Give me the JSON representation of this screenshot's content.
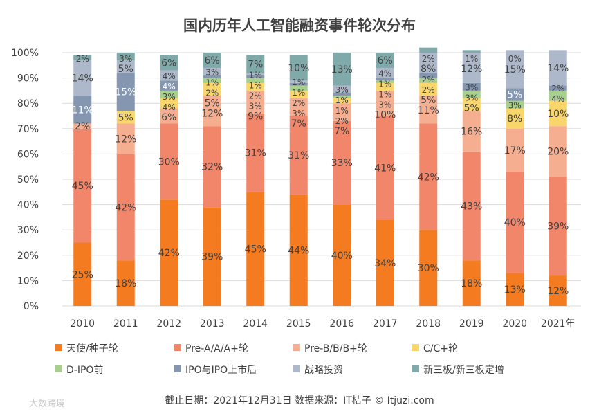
{
  "chart_data": {
    "type": "bar",
    "stacked": true,
    "title": "国内历年人工智能融资事件轮次分布",
    "categories": [
      "2010",
      "2011",
      "2012",
      "2013",
      "2014",
      "2015",
      "2016",
      "2017",
      "2018",
      "2019",
      "2020",
      "2021年"
    ],
    "ylim": [
      0,
      100
    ],
    "yticks": [
      "0%",
      "10%",
      "20%",
      "30%",
      "40%",
      "50%",
      "60%",
      "70%",
      "80%",
      "90%",
      "100%"
    ],
    "grid": true,
    "legend_position": "bottom",
    "series": [
      {
        "name": "天使/种子轮",
        "color": "#F47B20",
        "label_color": "#404040",
        "values": [
          25,
          18,
          42,
          39,
          45,
          44,
          40,
          34,
          30,
          18,
          13,
          12
        ]
      },
      {
        "name": "Pre-A/A/A+轮",
        "color": "#F2866A",
        "label_color": "#404040",
        "values": [
          45,
          42,
          30,
          32,
          31,
          31,
          33,
          41,
          42,
          43,
          40,
          39
        ]
      },
      {
        "name": "Pre-B/B/B+轮",
        "color": "#F6AE91",
        "label_color": "#404040",
        "values": [
          2,
          12,
          6,
          12,
          9,
          7,
          7,
          10,
          11,
          16,
          17,
          20
        ]
      },
      {
        "name": "C/C+轮",
        "color": "#F8D66B",
        "label_color": "#404040",
        "values": [
          0,
          5,
          4,
          5,
          3,
          3,
          2,
          3,
          5,
          5,
          8,
          10
        ]
      },
      {
        "name": "D-IPO前",
        "color": "#A8D08D",
        "label_color": "#404040",
        "values": [
          0,
          0,
          3,
          2,
          2,
          2,
          1,
          1,
          2,
          3,
          3,
          4
        ]
      },
      {
        "name": "IPO与IPO上市后",
        "color": "#8496B0",
        "label_color": "#ffffff",
        "values": [
          11,
          15,
          4,
          1,
          1,
          1,
          1,
          1,
          2,
          3,
          5,
          2
        ]
      },
      {
        "name": "战略投资",
        "color": "#ADB9CA",
        "label_color": "#404040",
        "values": [
          14,
          5,
          4,
          3,
          1,
          1,
          3,
          4,
          8,
          12,
          15,
          14
        ]
      },
      {
        "name": "新三板/新三板定增",
        "color": "#80A9A9",
        "label_color": "#404040",
        "values": [
          2,
          3,
          6,
          6,
          7,
          10,
          13,
          6,
          2,
          1,
          0,
          0
        ]
      }
    ]
  },
  "footer": "截止日期：2021年12月31日    数据来源：IT桔子 © Itjuzi.com",
  "watermark": "大数跨境"
}
